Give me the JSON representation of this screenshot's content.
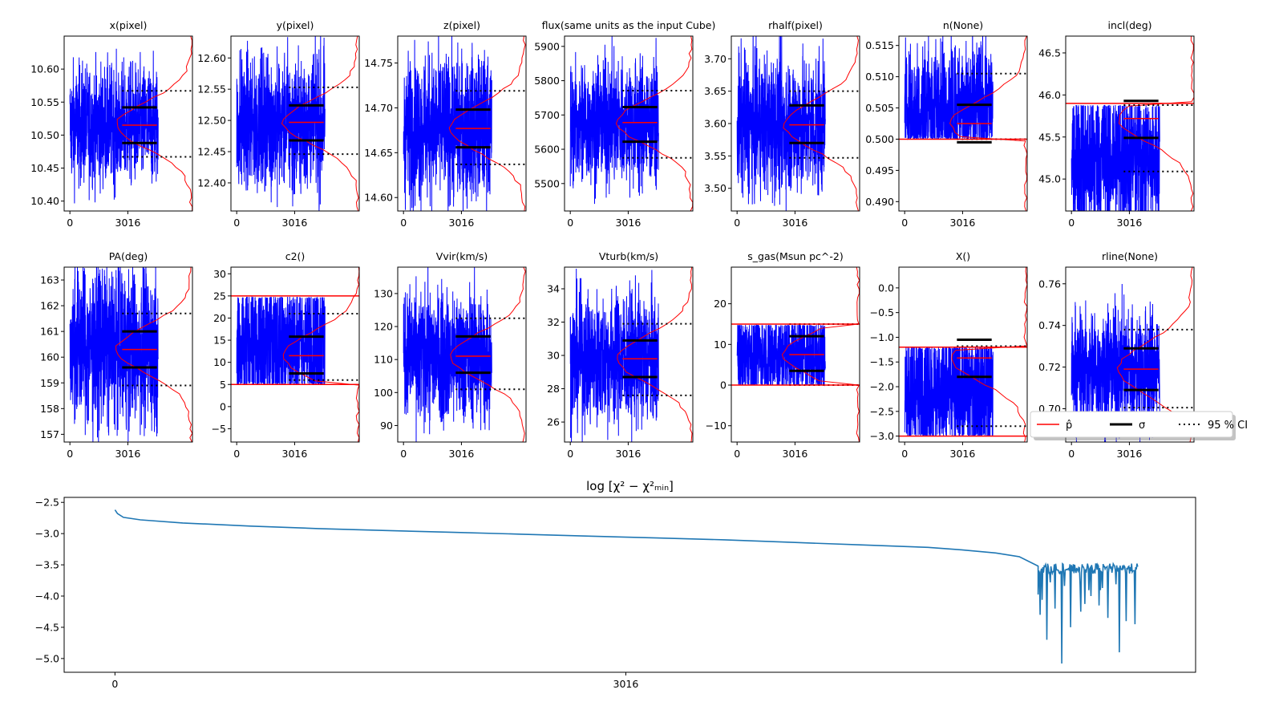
{
  "chart_data": {
    "panels": [
      {
        "title": "x(pixel)",
        "type": "line",
        "ylim": [
          10.385,
          10.65
        ],
        "yticks": [
          10.4,
          10.45,
          10.5,
          10.55,
          10.6
        ],
        "dec": 2,
        "center": 10.515,
        "amp": 0.05,
        "pmode": "normal",
        "p": 10.515,
        "sig": [
          10.488,
          10.542
        ],
        "ci": [
          10.467,
          10.567
        ],
        "xticks": [
          0,
          3016
        ]
      },
      {
        "title": "y(pixel)",
        "type": "line",
        "ylim": [
          12.355,
          12.635
        ],
        "yticks": [
          12.4,
          12.45,
          12.5,
          12.55,
          12.6
        ],
        "dec": 2,
        "center": 12.495,
        "amp": 0.06,
        "pmode": "normal",
        "p": 12.497,
        "sig": [
          12.468,
          12.524
        ],
        "ci": [
          12.446,
          12.553
        ],
        "xticks": [
          0,
          3016
        ]
      },
      {
        "title": "z(pixel)",
        "type": "line",
        "ylim": [
          14.585,
          14.78
        ],
        "yticks": [
          14.6,
          14.65,
          14.7,
          14.75
        ],
        "dec": 2,
        "center": 14.678,
        "amp": 0.045,
        "pmode": "normal",
        "p": 14.677,
        "sig": [
          14.656,
          14.698
        ],
        "ci": [
          14.637,
          14.719
        ],
        "xticks": [
          0,
          3016
        ]
      },
      {
        "title": "flux(same units as the input Cube)",
        "type": "line",
        "ylim": [
          5420,
          5930
        ],
        "yticks": [
          5500,
          5600,
          5700,
          5800,
          5900
        ],
        "dec": 0,
        "center": 5677,
        "amp": 100,
        "pmode": "normal",
        "p": 5678,
        "sig": [
          5622,
          5723
        ],
        "ci": [
          5575,
          5771
        ],
        "xticks": [
          0,
          3016
        ]
      },
      {
        "title": "rhalf(pixel)",
        "type": "line",
        "ylim": [
          3.465,
          3.735
        ],
        "yticks": [
          3.5,
          3.55,
          3.6,
          3.65,
          3.7
        ],
        "dec": 2,
        "center": 3.598,
        "amp": 0.06,
        "pmode": "normal",
        "p": 3.598,
        "sig": [
          3.57,
          3.628
        ],
        "ci": [
          3.547,
          3.65
        ],
        "xticks": [
          0,
          3016
        ]
      },
      {
        "title": "n(None)",
        "type": "line",
        "ylim": [
          0.4885,
          0.5165
        ],
        "yticks": [
          0.49,
          0.495,
          0.5,
          0.505,
          0.51,
          0.515
        ],
        "dec": 3,
        "center": 0.505,
        "amp": 0.006,
        "pmode": "clip",
        "clip": [
          0.5,
          null
        ],
        "hline": 0.5,
        "p": 0.5025,
        "sig": [
          0.4995,
          0.5055
        ],
        "ci": [
          0.5,
          0.5105
        ],
        "xticks": [
          0,
          3016
        ]
      },
      {
        "title": "incl(deg)",
        "type": "line",
        "ylim": [
          44.62,
          46.7
        ],
        "yticks": [
          45.0,
          45.5,
          46.0,
          46.5
        ],
        "dec": 1,
        "center": 45.25,
        "amp": 0.55,
        "pmode": "clip",
        "clip": [
          null,
          45.88
        ],
        "hline": 45.9,
        "p": 45.72,
        "sig": [
          45.49,
          45.93
        ],
        "ci": [
          45.09,
          45.88
        ],
        "xticks": [
          0,
          3016
        ]
      },
      {
        "title": "PA(deg)",
        "type": "line",
        "ylim": [
          156.7,
          163.5
        ],
        "yticks": [
          157,
          158,
          159,
          160,
          161,
          162,
          163
        ],
        "dec": 0,
        "center": 160.4,
        "amp": 1.7,
        "pmode": "normal",
        "p": 160.3,
        "sig": [
          159.6,
          161.0
        ],
        "ci": [
          158.9,
          161.7
        ],
        "xticks": [
          0,
          3016
        ]
      },
      {
        "title": "c2()",
        "type": "line",
        "ylim": [
          -8,
          31.5
        ],
        "yticks": [
          -5,
          0,
          5,
          10,
          15,
          20,
          25,
          30
        ],
        "dec": 0,
        "center": 14.5,
        "amp": 10,
        "pmode": "clip",
        "clip": [
          5,
          24.8
        ],
        "hline": 25,
        "hline2": 5,
        "p": 11.5,
        "sig": [
          7.5,
          15.8
        ],
        "ci": [
          6,
          21
        ],
        "xticks": [
          0,
          3016
        ]
      },
      {
        "title": "Vvir(km/s)",
        "type": "line",
        "ylim": [
          85,
          138
        ],
        "yticks": [
          90,
          100,
          110,
          120,
          130
        ],
        "dec": 0,
        "center": 111,
        "amp": 11,
        "pmode": "normal",
        "p": 111,
        "sig": [
          106,
          117
        ],
        "ci": [
          101,
          122.5
        ],
        "xticks": [
          0,
          3016
        ]
      },
      {
        "title": "Vturb(km/s)",
        "type": "line",
        "ylim": [
          24.8,
          35.3
        ],
        "yticks": [
          26,
          28,
          30,
          32,
          34
        ],
        "dec": 0,
        "center": 29.8,
        "amp": 2.2,
        "pmode": "normal",
        "p": 29.8,
        "sig": [
          28.7,
          30.9
        ],
        "ci": [
          27.6,
          31.9
        ],
        "xticks": [
          0,
          3016
        ]
      },
      {
        "title": "s_gas(Msun pc^-2)",
        "type": "line",
        "ylim": [
          -14,
          29
        ],
        "yticks": [
          -10,
          0,
          10,
          20
        ],
        "dec": 0,
        "center": 7.5,
        "amp": 7,
        "pmode": "clip",
        "clip": [
          0,
          14.8
        ],
        "hline": 15,
        "hline2": 0,
        "p": 7.5,
        "sig": [
          3.5,
          12
        ],
        "ci": [
          0,
          15
        ],
        "xticks": [
          0,
          3016
        ]
      },
      {
        "title": "X()",
        "type": "line",
        "ylim": [
          -3.12,
          0.42
        ],
        "yticks": [
          -3.0,
          -2.5,
          -2.0,
          -1.5,
          -1.0,
          -0.5,
          0.0
        ],
        "dec": 1,
        "center": -2.1,
        "amp": 0.9,
        "pmode": "clip",
        "clip": [
          -3.0,
          -1.2
        ],
        "hline": -1.2,
        "hline2": -3.0,
        "p": -1.42,
        "sig": [
          -1.8,
          -1.05
        ],
        "ci": [
          -2.8,
          -1.18
        ],
        "xticks": [
          0,
          3016
        ]
      },
      {
        "title": "rline(None)",
        "type": "line",
        "ylim": [
          0.684,
          0.768
        ],
        "yticks": [
          0.7,
          0.72,
          0.74,
          0.76
        ],
        "dec": 2,
        "center": 0.719,
        "amp": 0.016,
        "pmode": "normal",
        "p": 0.719,
        "sig": [
          0.709,
          0.729
        ],
        "ci": [
          0.7005,
          0.738
        ],
        "xticks": [
          0,
          3016
        ]
      }
    ],
    "chi2": {
      "title": "log  [χ² − χ²ₘᵢₙ]",
      "type": "line",
      "ylim": [
        -5.22,
        -2.42
      ],
      "yticks": [
        -5.0,
        -4.5,
        -4.0,
        -3.5,
        -3.0,
        -2.5
      ],
      "dec": 1,
      "xlim": [
        -300,
        6380
      ],
      "xticks": [
        0,
        3016
      ],
      "curve": [
        [
          0,
          -2.62
        ],
        [
          15,
          -2.68
        ],
        [
          50,
          -2.74
        ],
        [
          150,
          -2.78
        ],
        [
          400,
          -2.83
        ],
        [
          800,
          -2.88
        ],
        [
          1200,
          -2.92
        ],
        [
          1600,
          -2.95
        ],
        [
          2000,
          -2.98
        ],
        [
          2400,
          -3.01
        ],
        [
          2800,
          -3.04
        ],
        [
          3200,
          -3.07
        ],
        [
          3600,
          -3.1
        ],
        [
          4000,
          -3.14
        ],
        [
          4400,
          -3.18
        ],
        [
          4800,
          -3.22
        ],
        [
          5000,
          -3.26
        ],
        [
          5200,
          -3.31
        ],
        [
          5340,
          -3.37
        ],
        [
          5450,
          -3.52
        ]
      ],
      "noise": {
        "x": [
          5450,
          6040
        ],
        "base": -3.56,
        "dips": [
          [
            5460,
            -4.3
          ],
          [
            5500,
            -4.7
          ],
          [
            5550,
            -4.2
          ],
          [
            5590,
            -5.08
          ],
          [
            5640,
            -4.5
          ],
          [
            5700,
            -4.25
          ],
          [
            5760,
            -4.0
          ],
          [
            5810,
            -4.15
          ],
          [
            5860,
            -4.35
          ],
          [
            5930,
            -4.9
          ],
          [
            5970,
            -4.4
          ],
          [
            6020,
            -4.45
          ]
        ]
      }
    },
    "legend": {
      "location": "right",
      "items": [
        {
          "label": "p̂",
          "style": "solid",
          "color": "#ff0000"
        },
        {
          "label": "σ",
          "style": "solid",
          "color": "#000000"
        },
        {
          "label": "95 % CI",
          "style": "dotted",
          "color": "#000000"
        }
      ]
    },
    "colors": {
      "trace": "#0000ff",
      "hist": "#ff0000",
      "sigma": "#000000",
      "ci": "#000000",
      "chi2": "#1f77b4"
    }
  }
}
